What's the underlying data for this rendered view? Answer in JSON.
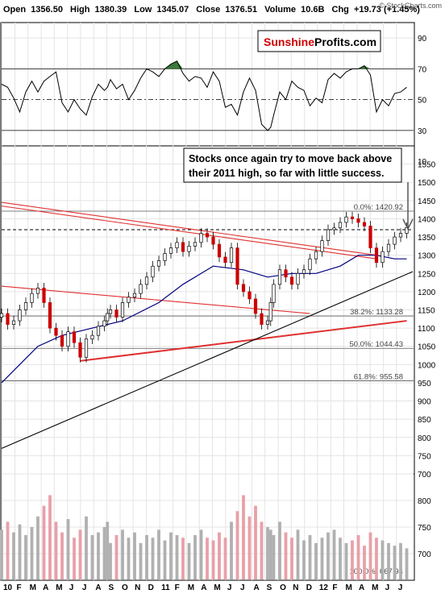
{
  "header": {
    "open_label": "Open",
    "open_value": "1356.50",
    "high_label": "High",
    "high_value": "1380.39",
    "low_label": "Low",
    "low_value": "1345.07",
    "close_label": "Close",
    "close_value": "1376.51",
    "volume_label": "Volume",
    "volume_value": "10.6B",
    "chg_label": "Chg",
    "chg_value": "+19.73 (+1.45%)",
    "watermark": "© StockCharts.com"
  },
  "logo": {
    "part1": "Sunshine",
    "part2": "Profits.com"
  },
  "annotation": {
    "line1": "Stocks once again try to move back above",
    "line2": "their 2011 high, so far with little success."
  },
  "colors": {
    "up": "#ffffff",
    "down": "#cc0000",
    "ma": "#000080",
    "trend_red": "#e03030",
    "trend_black": "#000000",
    "vol_up": "#b0b0b0",
    "vol_down": "#e8a0a8",
    "rsi_fill": "#3a7a3a"
  },
  "chart_data": [
    {
      "type": "line",
      "name": "rsi",
      "ylim": [
        20,
        100
      ],
      "y_ticks": [
        "90",
        "70",
        "50",
        "30",
        "10"
      ],
      "y_tick_values": [
        90,
        70,
        50,
        30,
        10
      ],
      "reference_lines": [
        70,
        50,
        30
      ],
      "x": [
        0,
        2,
        4,
        6,
        8,
        10,
        12,
        14,
        16,
        18,
        20,
        22,
        24,
        26,
        28,
        30,
        32,
        34,
        35,
        36,
        38,
        40,
        42,
        44,
        46,
        48,
        50,
        52,
        54,
        56,
        58,
        60,
        62,
        64,
        66,
        68,
        70,
        72,
        74,
        76,
        78,
        80,
        82,
        84,
        86,
        88,
        89,
        90,
        92,
        94,
        96,
        98,
        100,
        102,
        104,
        106,
        108,
        110,
        112,
        114,
        116,
        118,
        120,
        122,
        124,
        126,
        128,
        130,
        132,
        134
      ],
      "values": [
        60,
        58,
        51,
        42,
        55,
        62,
        55,
        62,
        65,
        68,
        48,
        42,
        50,
        44,
        40,
        52,
        60,
        56,
        58,
        63,
        57,
        60,
        50,
        56,
        64,
        70,
        68,
        65,
        70,
        73,
        75,
        67,
        62,
        65,
        64,
        58,
        68,
        62,
        45,
        47,
        40,
        55,
        64,
        56,
        34,
        30,
        32,
        40,
        55,
        50,
        62,
        58,
        56,
        46,
        51,
        48,
        63,
        67,
        64,
        68,
        70,
        70,
        72,
        66,
        42,
        50,
        46,
        54,
        55,
        58
      ]
    },
    {
      "type": "candlestick",
      "name": "price",
      "ylim": [
        700,
        1600
      ],
      "y_ticks": [
        "1550",
        "1500",
        "1450",
        "1400",
        "1350",
        "1300",
        "1250",
        "1200",
        "1150",
        "1100",
        "1050",
        "1000",
        "950",
        "900",
        "850",
        "800",
        "750",
        "700"
      ],
      "y_tick_values": [
        1550,
        1500,
        1450,
        1400,
        1350,
        1300,
        1250,
        1200,
        1150,
        1100,
        1050,
        1000,
        950,
        900,
        850,
        800,
        750,
        700
      ],
      "x_ticks": [
        "10",
        "F",
        "M",
        "A",
        "M",
        "J",
        "J",
        "A",
        "S",
        "O",
        "N",
        "D",
        "11",
        "F",
        "M",
        "A",
        "M",
        "J",
        "J",
        "A",
        "S",
        "O",
        "N",
        "D",
        "12",
        "F",
        "M",
        "A",
        "M",
        "J",
        "J"
      ],
      "x_tick_values": [
        0,
        4.4,
        8.7,
        13.1,
        17.4,
        21.8,
        26.1,
        30.5,
        34.8,
        39.2,
        43.5,
        47.9,
        52.3,
        56.7,
        61,
        65.4,
        69.7,
        74.1,
        78.4,
        82.8,
        87.1,
        91.5,
        95.8,
        100.2,
        104.5,
        108.9,
        113.2,
        117.6,
        121.9,
        126.3,
        130.6
      ],
      "x": [
        0,
        2,
        4,
        6,
        8,
        10,
        12,
        14,
        16,
        18,
        20,
        22,
        24,
        26,
        28,
        30,
        32,
        34,
        35,
        36,
        38,
        40,
        42,
        44,
        46,
        48,
        50,
        52,
        54,
        56,
        58,
        60,
        62,
        64,
        66,
        68,
        70,
        72,
        74,
        76,
        78,
        80,
        82,
        84,
        86,
        88,
        89,
        90,
        92,
        94,
        96,
        98,
        100,
        102,
        104,
        106,
        108,
        110,
        112,
        114,
        116,
        118,
        120,
        122,
        124,
        126,
        128,
        130,
        132,
        134
      ],
      "values": [
        1140,
        1110,
        1120,
        1150,
        1170,
        1195,
        1210,
        1170,
        1100,
        1080,
        1050,
        1090,
        1060,
        1020,
        1070,
        1080,
        1105,
        1120,
        1140,
        1150,
        1130,
        1170,
        1185,
        1195,
        1220,
        1240,
        1270,
        1285,
        1305,
        1320,
        1335,
        1310,
        1325,
        1335,
        1360,
        1350,
        1330,
        1295,
        1280,
        1320,
        1220,
        1200,
        1180,
        1140,
        1110,
        1120,
        1170,
        1220,
        1260,
        1240,
        1220,
        1250,
        1260,
        1290,
        1310,
        1340,
        1370,
        1375,
        1390,
        1405,
        1400,
        1390,
        1380,
        1320,
        1280,
        1310,
        1330,
        1350,
        1360,
        1376
      ],
      "moving_average_x": [
        0,
        6,
        12,
        20,
        30,
        40,
        52,
        60,
        70,
        80,
        88,
        96,
        104,
        112,
        118,
        124,
        130,
        134
      ],
      "moving_average": [
        950,
        1000,
        1050,
        1080,
        1100,
        1120,
        1170,
        1220,
        1270,
        1260,
        1240,
        1250,
        1250,
        1270,
        1300,
        1300,
        1290,
        1290
      ],
      "fibonacci": [
        {
          "label": "0.0%: 1420.92",
          "value": 1420.92
        },
        {
          "label": "38.2%: 1133.28",
          "value": 1133.28
        },
        {
          "label": "50.0%: 1044.43",
          "value": 1044.43
        },
        {
          "label": "61.8%: 955.58",
          "value": 955.58
        },
        {
          "label": "100.0%: 667.94",
          "value": 667.94
        }
      ],
      "dashed_level": 1370,
      "trendlines": [
        {
          "color": "red",
          "x1": 0,
          "y1": 1445,
          "x2": 124,
          "y2": 1300
        },
        {
          "color": "red",
          "x1": 0,
          "y1": 1435,
          "x2": 124,
          "y2": 1290
        },
        {
          "color": "red",
          "x1": 0,
          "y1": 1215,
          "x2": 102,
          "y2": 1140
        },
        {
          "color": "red",
          "x1": 26,
          "y1": 1010,
          "x2": 134,
          "y2": 1120
        },
        {
          "color": "black",
          "x1": 0,
          "y1": 770,
          "x2": 136,
          "y2": 1255
        }
      ]
    },
    {
      "type": "bar",
      "name": "volume",
      "ylim": [
        650,
        850
      ],
      "y_ticks": [
        "800",
        "750",
        "700"
      ],
      "y_tick_values": [
        800,
        750,
        700
      ],
      "x": [
        0,
        2,
        4,
        6,
        8,
        10,
        12,
        14,
        16,
        18,
        20,
        22,
        24,
        26,
        28,
        30,
        32,
        34,
        35,
        36,
        38,
        40,
        42,
        44,
        46,
        48,
        50,
        52,
        54,
        56,
        58,
        60,
        62,
        64,
        66,
        68,
        70,
        72,
        74,
        76,
        78,
        80,
        82,
        84,
        86,
        88,
        89,
        90,
        92,
        94,
        96,
        98,
        100,
        102,
        104,
        106,
        108,
        110,
        112,
        114,
        116,
        118,
        120,
        122,
        124,
        126,
        128,
        130,
        132,
        134
      ],
      "values": [
        745,
        760,
        740,
        755,
        735,
        750,
        770,
        790,
        810,
        760,
        740,
        765,
        730,
        745,
        770,
        735,
        740,
        750,
        760,
        720,
        735,
        745,
        730,
        740,
        720,
        735,
        730,
        745,
        725,
        740,
        735,
        730,
        720,
        735,
        745,
        730,
        725,
        740,
        730,
        760,
        780,
        810,
        770,
        790,
        760,
        750,
        745,
        735,
        760,
        740,
        730,
        745,
        725,
        735,
        720,
        730,
        740,
        745,
        730,
        720,
        725,
        735,
        715,
        740,
        730,
        725,
        720,
        715,
        720,
        710
      ]
    }
  ]
}
